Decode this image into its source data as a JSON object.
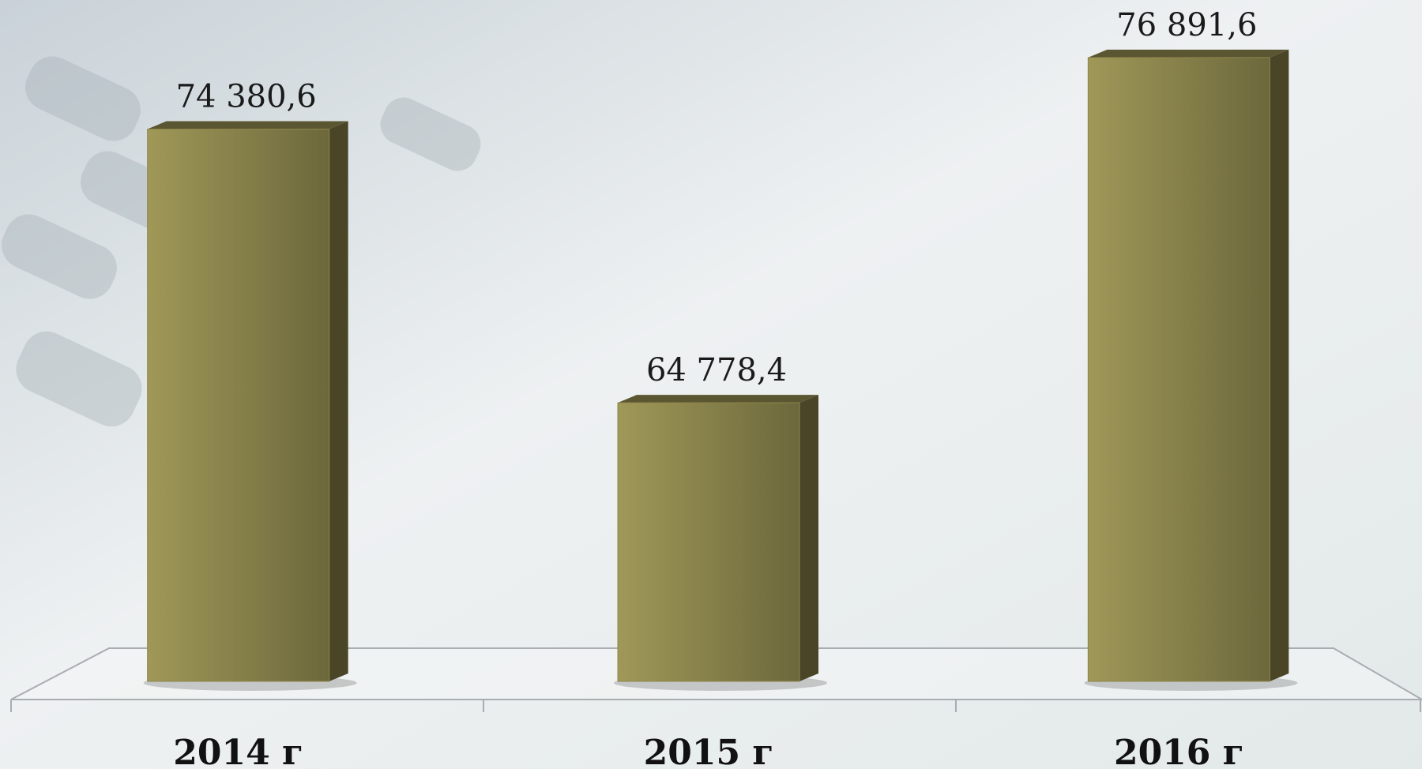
{
  "chart_data": {
    "type": "bar",
    "categories": [
      "2014 г",
      "2015 г",
      "2016 г"
    ],
    "values": [
      74380.6,
      64778.4,
      76891.6
    ],
    "value_labels": [
      "74 380,6",
      "64 778,4",
      "76 891,6"
    ],
    "color": "#8f8749",
    "ylim": [
      55000,
      77000
    ]
  }
}
